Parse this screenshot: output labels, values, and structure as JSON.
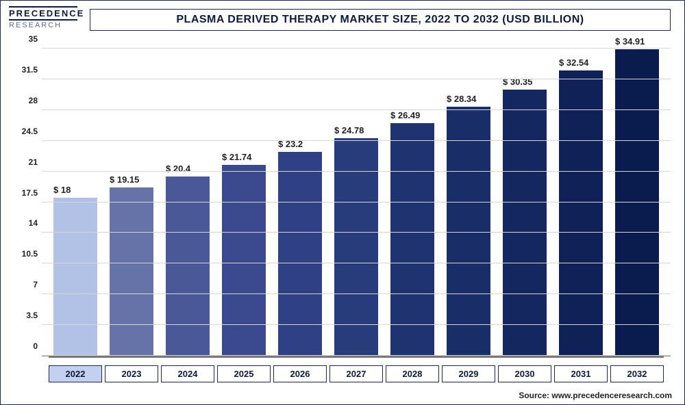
{
  "logo": {
    "line1": "PRECEDENCE",
    "line2": "RESEARCH"
  },
  "chart": {
    "type": "bar",
    "title": "PLASMA DERIVED THERAPY MARKET SIZE, 2022 TO 2032 (USD BILLION)",
    "categories": [
      "2022",
      "2023",
      "2024",
      "2025",
      "2026",
      "2027",
      "2028",
      "2029",
      "2030",
      "2031",
      "2032"
    ],
    "values": [
      18,
      19.15,
      20.4,
      21.74,
      23.2,
      24.78,
      26.49,
      28.34,
      30.35,
      32.54,
      34.91
    ],
    "value_prefix": "$ ",
    "bar_colors": [
      "#b2c1e6",
      "#6673a8",
      "#4a5898",
      "#3b4a8e",
      "#2f4184",
      "#283b7a",
      "#1f3371",
      "#192d68",
      "#14275f",
      "#0f2156",
      "#0a1c4d"
    ],
    "ylim": [
      0,
      35
    ],
    "yticks": [
      0,
      3.5,
      7,
      10.5,
      14,
      17.5,
      21,
      24.5,
      28,
      31.5,
      35
    ],
    "background_color": "#ffffff",
    "grid_color": "#d6d6d6",
    "border_color": "#1a2952",
    "label_fontsize": 13,
    "title_fontsize": 16,
    "highlighted_year_index": 0,
    "bar_width_pct": 82
  },
  "source": "Source: www.precedenceresearch.com"
}
